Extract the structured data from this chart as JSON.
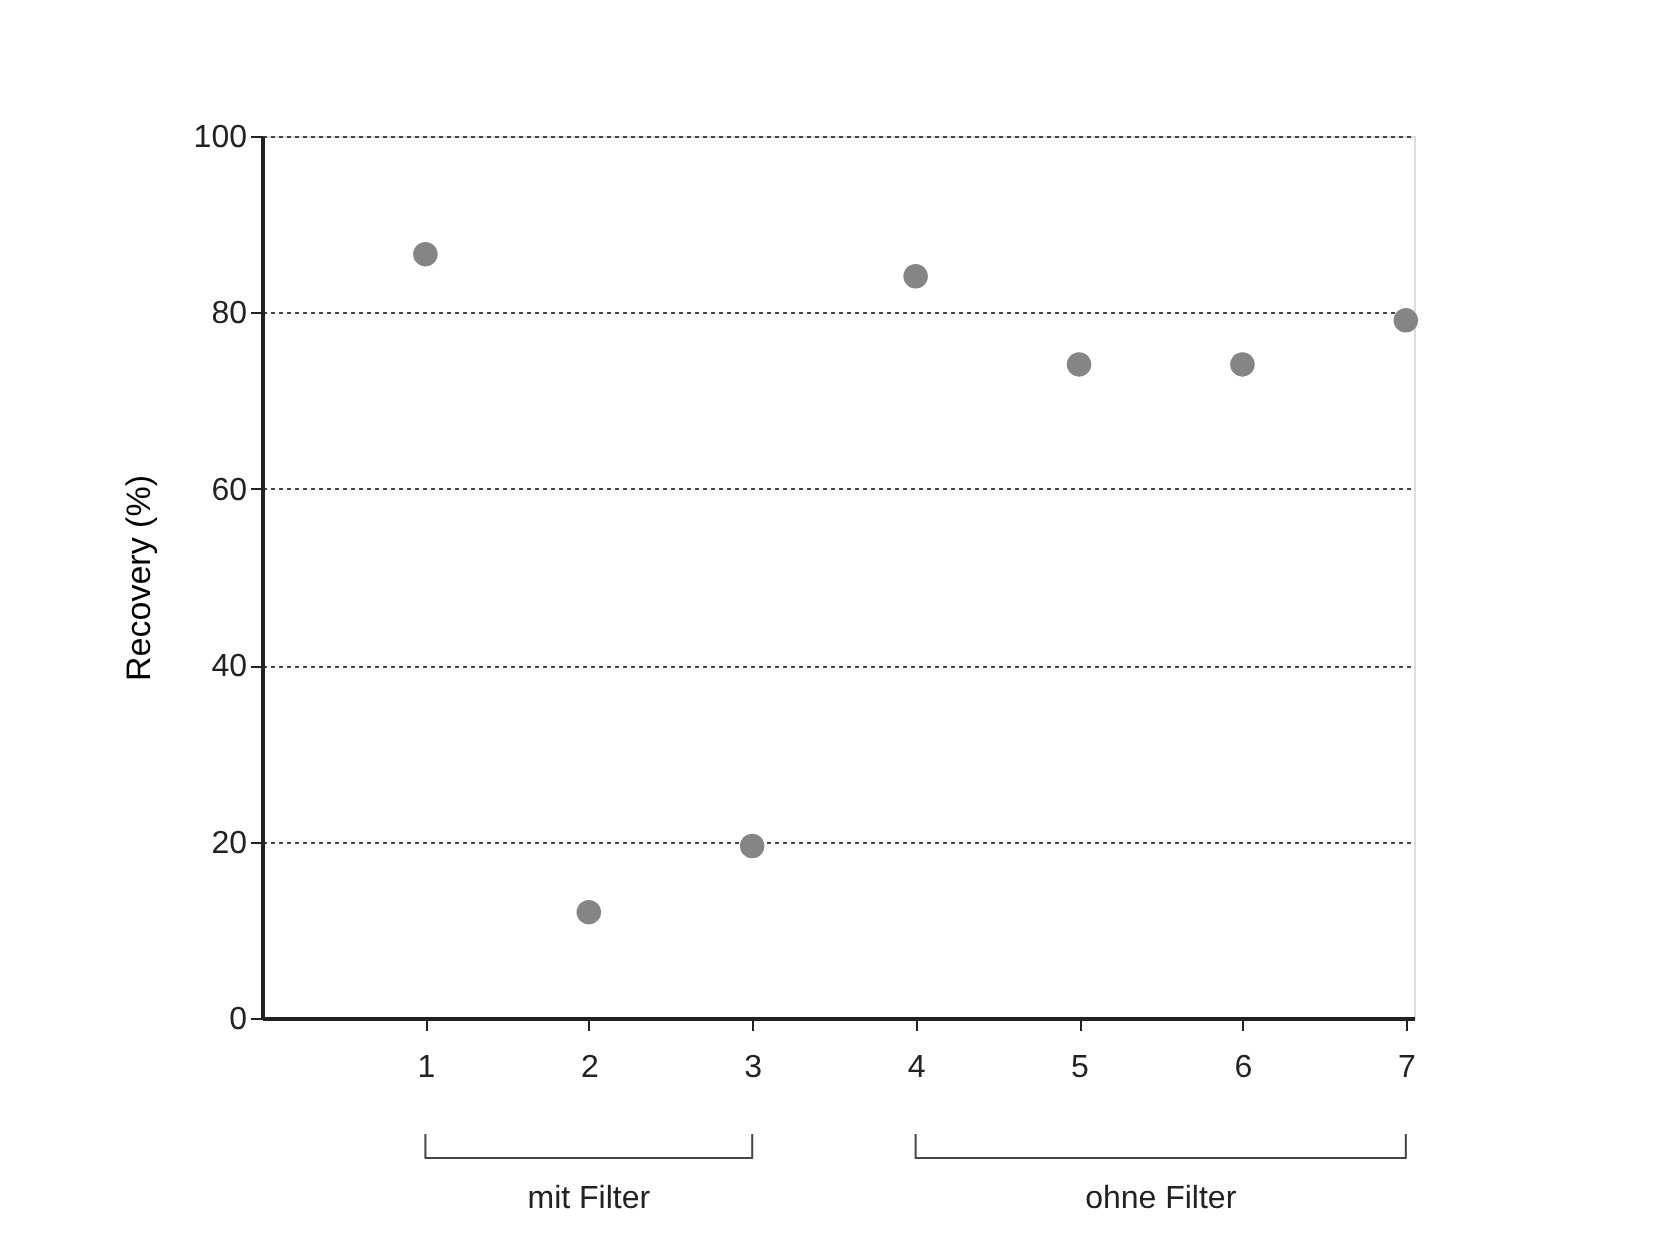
{
  "chart_data": {
    "type": "scatter",
    "ylabel": "Recovery (%)",
    "x": [
      1,
      2,
      3,
      4,
      5,
      6,
      7
    ],
    "values": [
      86.6,
      12.0,
      19.5,
      84.1,
      74.1,
      74.1,
      79.1
    ],
    "color": "#858585",
    "marker": "circle",
    "xlim": [
      0,
      7.05
    ],
    "xticks": [
      1,
      2,
      3,
      4,
      5,
      6,
      7
    ],
    "ylim": [
      0,
      100
    ],
    "yticks": [
      0,
      20,
      40,
      60,
      80,
      100
    ],
    "grid": "y",
    "annotations": [
      "mit Filter",
      "ohne Filter"
    ]
  }
}
